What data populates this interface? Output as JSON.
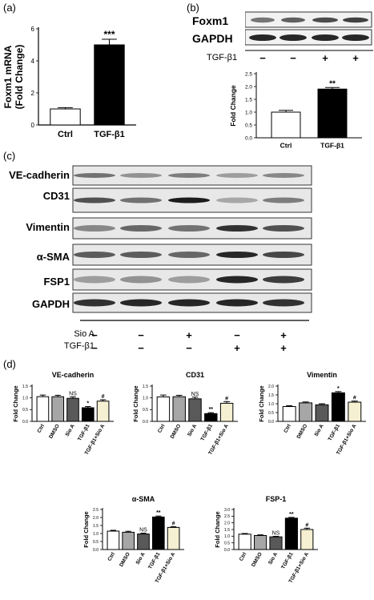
{
  "panels": {
    "a": "(a)",
    "b": "(b)",
    "c": "(c)",
    "d": "(d)"
  },
  "chart_data": [
    {
      "id": "a",
      "type": "bar",
      "categories": [
        "Ctrl",
        "TGF-β1"
      ],
      "values": [
        1.0,
        5.0
      ],
      "errors": [
        0.08,
        0.35
      ],
      "significance": [
        "",
        "***"
      ],
      "ylabel_line1": "Foxm1  mRNA",
      "ylabel_line2": "(Fold Change)",
      "ylim": [
        0,
        6
      ],
      "yticks": [
        "0",
        "2",
        "4",
        "6"
      ],
      "colors": [
        "#ffffff",
        "#000000"
      ]
    },
    {
      "id": "b",
      "type": "bar",
      "categories": [
        "Ctrl",
        "TGF-β1"
      ],
      "values": [
        1.0,
        1.9
      ],
      "errors": [
        0.07,
        0.06
      ],
      "significance": [
        "",
        "**"
      ],
      "ylabel": "Fold Change",
      "ylim": [
        0,
        2.5
      ],
      "yticks": [
        "0.0",
        "0.5",
        "1.0",
        "1.5",
        "2.0",
        "2.5"
      ],
      "colors": [
        "#ffffff",
        "#000000"
      ]
    },
    {
      "id": "d1",
      "type": "bar",
      "title": "VE-cadherin",
      "categories": [
        "Ctrl",
        "DMSO",
        "Sio A",
        "TGF-β1",
        "TGF-β1+Sio A"
      ],
      "values": [
        1.05,
        1.05,
        0.98,
        0.58,
        0.86
      ],
      "errors": [
        0.07,
        0.06,
        0.06,
        0.05,
        0.06
      ],
      "significance": [
        "",
        "",
        "NS",
        "*",
        "#"
      ],
      "ylabel": "Fold Change",
      "ylim": [
        0,
        1.5
      ],
      "yticks": [
        "0.0",
        "0.5",
        "1.0",
        "1.5"
      ]
    },
    {
      "id": "d2",
      "type": "bar",
      "title": "CD31",
      "categories": [
        "Ctrl",
        "DMSO",
        "Sio A",
        "TGF-β1",
        "TGF-β1+Sio A"
      ],
      "values": [
        1.04,
        1.05,
        0.96,
        0.33,
        0.77
      ],
      "errors": [
        0.08,
        0.06,
        0.07,
        0.04,
        0.07
      ],
      "significance": [
        "",
        "",
        "NS",
        "**",
        "#"
      ],
      "ylabel": "Fold Change",
      "ylim": [
        0,
        1.5
      ],
      "yticks": [
        "0.0",
        "0.5",
        "1.0",
        "1.5"
      ]
    },
    {
      "id": "d3",
      "type": "bar",
      "title": "Vimentin",
      "categories": [
        "Ctrl",
        "DMSO",
        "Sio A",
        "TGF-β1",
        "TGF-β1+Sio A"
      ],
      "values": [
        0.84,
        1.05,
        0.94,
        1.62,
        1.09
      ],
      "errors": [
        0.05,
        0.05,
        0.06,
        0.07,
        0.06
      ],
      "significance": [
        "",
        "",
        "",
        "*",
        "#"
      ],
      "ylabel": "Fold Change",
      "ylim": [
        0,
        2.0
      ],
      "yticks": [
        "0.0",
        "0.5",
        "1.0",
        "1.5",
        "2.0"
      ]
    },
    {
      "id": "d4",
      "type": "bar",
      "title": "α-SMA",
      "categories": [
        "Ctrl",
        "DMSO",
        "Sio A",
        "TGF-β1",
        "TGF-β1+Sio A"
      ],
      "values": [
        1.15,
        1.08,
        0.97,
        2.03,
        1.38
      ],
      "errors": [
        0.05,
        0.06,
        0.05,
        0.06,
        0.05
      ],
      "significance": [
        "",
        "",
        "NS",
        "**",
        "#"
      ],
      "ylabel": "Fold Change",
      "ylim": [
        0,
        2.5
      ],
      "yticks": [
        "0.0",
        "0.5",
        "1.0",
        "1.5",
        "2.0",
        "2.5"
      ]
    },
    {
      "id": "d5",
      "type": "bar",
      "title": "FSP-1",
      "categories": [
        "Ctrl",
        "DMSO",
        "Sio A",
        "TGF-β1",
        "TGF-β1+Sio A"
      ],
      "values": [
        1.15,
        1.05,
        0.95,
        2.35,
        1.5
      ],
      "errors": [
        0.05,
        0.05,
        0.04,
        0.06,
        0.1
      ],
      "significance": [
        "",
        "",
        "NS",
        "**",
        "#"
      ],
      "ylabel": "Fold Change",
      "ylim": [
        0,
        3.0
      ],
      "yticks": [
        "0.0",
        "0.5",
        "1.0",
        "1.5",
        "2.0",
        "2.5",
        "3.0"
      ]
    }
  ],
  "blot_b": {
    "labels": [
      "Foxm1",
      "GAPDH"
    ],
    "condition_label": "TGF-β1",
    "conditions": [
      "−",
      "−",
      "+",
      "+"
    ]
  },
  "blot_c": {
    "labels": [
      "VE-cadherin",
      "CD31",
      "Vimentin",
      "α-SMA",
      "FSP1",
      "GAPDH"
    ],
    "row1_label": "Sio A",
    "row1": [
      "−",
      "−",
      "+",
      "−",
      "+"
    ],
    "row2_label": "TGF-β1",
    "row2": [
      "−",
      "−",
      "−",
      "+",
      "+"
    ]
  },
  "d_colors": [
    "#ffffff",
    "#a6a6a6",
    "#595959",
    "#000000",
    "#f6f0d2"
  ]
}
